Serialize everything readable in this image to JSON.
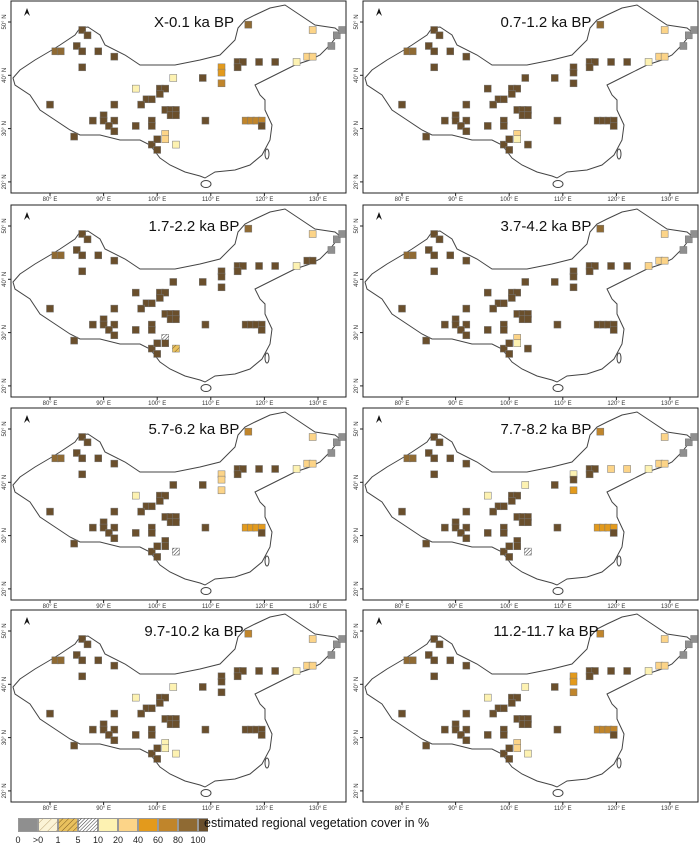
{
  "figure": {
    "north_arrow_icon": "north-arrow-icon",
    "x_ticks": [
      "80° E",
      "90° E",
      "100° E",
      "110° E",
      "120° E",
      "130° E"
    ],
    "y_ticks": [
      "50° N",
      "40° N",
      "30° N",
      "20° N"
    ],
    "x_tick_values": [
      80,
      90,
      100,
      110,
      120,
      130
    ],
    "y_tick_values": [
      50,
      40,
      30,
      20
    ]
  },
  "legend": {
    "title": "estimated regional vegetation cover in %",
    "tick_labels": [
      "0",
      ">0",
      "1",
      "5",
      "10",
      "20",
      "40",
      "60",
      "80",
      "100"
    ],
    "classes": [
      {
        "key": "0",
        "color": "#8f8f8f",
        "hatch": false
      },
      {
        "key": ">0",
        "color": "#fbf3d6",
        "hatch": "sparse"
      },
      {
        "key": "1",
        "color": "#e9c15e",
        "hatch": "medium"
      },
      {
        "key": "5",
        "color": "#ffffff",
        "hatch": "dense"
      },
      {
        "key": "10",
        "color": "#fdf2b2",
        "hatch": false
      },
      {
        "key": "20",
        "color": "#fcd488",
        "hatch": false
      },
      {
        "key": "40",
        "color": "#e39a1c",
        "hatch": false
      },
      {
        "key": "60",
        "color": "#c0852b",
        "hatch": false
      },
      {
        "key": "80",
        "color": "#8f6a33",
        "hatch": false
      },
      {
        "key": "100",
        "color": "#6a4f2c",
        "hatch": false
      }
    ]
  },
  "sites": [
    [
      86,
      48.5
    ],
    [
      87,
      47.5
    ],
    [
      117,
      49.5
    ],
    [
      85,
      45.5
    ],
    [
      86,
      44.5
    ],
    [
      81,
      44.5
    ],
    [
      82,
      44.5
    ],
    [
      89,
      44.5
    ],
    [
      92,
      43.5
    ],
    [
      86,
      41.5
    ],
    [
      108.5,
      39.5
    ],
    [
      103,
      39.5
    ],
    [
      96,
      37.5
    ],
    [
      100.5,
      37.5
    ],
    [
      101.5,
      37.5
    ],
    [
      100.5,
      36.5
    ],
    [
      98,
      35.5
    ],
    [
      99,
      35.5
    ],
    [
      97,
      34.5
    ],
    [
      80,
      34.5
    ],
    [
      92,
      34.5
    ],
    [
      101.5,
      33.5
    ],
    [
      102.5,
      33.5
    ],
    [
      103.5,
      33.5
    ],
    [
      102.5,
      32.5
    ],
    [
      103.5,
      32.5
    ],
    [
      90,
      32.5
    ],
    [
      88,
      31.5
    ],
    [
      90,
      31.5
    ],
    [
      92,
      31.5
    ],
    [
      91,
      30.5
    ],
    [
      92,
      29.5
    ],
    [
      96,
      30.5
    ],
    [
      99,
      31.5
    ],
    [
      99,
      30.5
    ],
    [
      109,
      31.5
    ],
    [
      84.5,
      28.5
    ],
    [
      99,
      27
    ],
    [
      100,
      28
    ],
    [
      100,
      26
    ],
    [
      101.5,
      29
    ],
    [
      101.5,
      28
    ],
    [
      103.5,
      27
    ],
    [
      116.5,
      31.5
    ],
    [
      117.5,
      31.5
    ],
    [
      118.5,
      31.5
    ],
    [
      119.5,
      31.5
    ],
    [
      119.5,
      30.5
    ],
    [
      115,
      42.5
    ],
    [
      116,
      42.5
    ],
    [
      115,
      41.5
    ],
    [
      119,
      42.5
    ],
    [
      122,
      42.5
    ],
    [
      112,
      41.5
    ],
    [
      112,
      40.5
    ],
    [
      112,
      38.5
    ],
    [
      126,
      42.5
    ],
    [
      128,
      43.5
    ],
    [
      129,
      43.5
    ],
    [
      129,
      48.5
    ],
    [
      133.5,
      47.5
    ],
    [
      134.5,
      48.5
    ],
    [
      132.5,
      45.5
    ]
  ],
  "panels": [
    {
      "title": "X-0.1 ka BP",
      "values": [
        "100",
        "100",
        "80",
        "100",
        "100",
        "80",
        "80",
        "100",
        "100",
        "100",
        "100",
        "10",
        "10",
        "100",
        "100",
        "100",
        "100",
        "100",
        "100",
        "100",
        "100",
        "100",
        "100",
        "100",
        "100",
        "100",
        "100",
        "100",
        "100",
        "100",
        "100",
        "100",
        "100",
        "100",
        "100",
        "100",
        "100",
        "100",
        "100",
        "100",
        "20",
        "20",
        "10",
        "60",
        "60",
        "60",
        "60",
        "100",
        "100",
        "100",
        "100",
        "100",
        "100",
        "40",
        "40",
        "60",
        "10",
        "20",
        "20",
        "20",
        "0",
        "0",
        "0"
      ]
    },
    {
      "title": "0.7-1.2 ka BP",
      "values": [
        "100",
        "100",
        "80",
        "100",
        "100",
        "80",
        "80",
        "100",
        "100",
        "100",
        "100",
        "100",
        "100",
        "100",
        "100",
        "100",
        "100",
        "100",
        "100",
        "100",
        "100",
        "100",
        "100",
        "100",
        "100",
        "100",
        "100",
        "100",
        "100",
        "100",
        "100",
        "100",
        "100",
        "100",
        "100",
        "100",
        "100",
        "100",
        "100",
        "100",
        "20",
        "10",
        "100",
        "100",
        "100",
        "100",
        "100",
        "100",
        "100",
        "100",
        "100",
        "100",
        "100",
        "100",
        "100",
        "100",
        "10",
        "20",
        "20",
        "20",
        "0",
        "0",
        "0"
      ]
    },
    {
      "title": "1.7-2.2 ka BP",
      "values": [
        "100",
        "100",
        "80",
        "100",
        "100",
        "80",
        "80",
        "100",
        "100",
        "100",
        "100",
        "100",
        "100",
        "100",
        "100",
        "100",
        "100",
        "100",
        "100",
        "100",
        "100",
        "100",
        "100",
        "100",
        "100",
        "100",
        "100",
        "100",
        "100",
        "100",
        "100",
        "100",
        "100",
        "100",
        "100",
        "100",
        "100",
        "100",
        "100",
        "100",
        "5",
        "100",
        "1",
        "100",
        "100",
        "100",
        "100",
        "100",
        "100",
        "100",
        "100",
        "100",
        "100",
        "100",
        "100",
        "100",
        "10",
        "100",
        "100",
        "20",
        "0",
        "0",
        "0"
      ]
    },
    {
      "title": "3.7-4.2 ka BP",
      "values": [
        "100",
        "100",
        "80",
        "100",
        "100",
        "80",
        "80",
        "100",
        "100",
        "100",
        "100",
        "100",
        "100",
        "100",
        "100",
        "100",
        "100",
        "100",
        "100",
        "100",
        "100",
        "100",
        "100",
        "100",
        "100",
        "100",
        "100",
        "100",
        "100",
        "100",
        "100",
        "100",
        "100",
        "100",
        "100",
        "100",
        "100",
        "100",
        "100",
        "100",
        "20",
        "10",
        "100",
        "100",
        "100",
        "100",
        "100",
        "100",
        "100",
        "100",
        "100",
        "100",
        "100",
        "100",
        "100",
        "100",
        "20",
        "20",
        "20",
        "20",
        "0",
        "0",
        "0"
      ]
    },
    {
      "title": "5.7-6.2 ka BP",
      "values": [
        "100",
        "100",
        "60",
        "100",
        "100",
        "80",
        "80",
        "100",
        "100",
        "100",
        "100",
        "100",
        "10",
        "100",
        "100",
        "100",
        "100",
        "100",
        "100",
        "100",
        "100",
        "100",
        "100",
        "100",
        "100",
        "100",
        "100",
        "100",
        "100",
        "100",
        "100",
        "100",
        "100",
        "100",
        "100",
        "100",
        "100",
        "100",
        "100",
        "100",
        "100",
        "100",
        "5",
        "40",
        "40",
        "40",
        "40",
        "100",
        "100",
        "100",
        "100",
        "100",
        "100",
        "20",
        "20",
        "20",
        "10",
        "20",
        "20",
        "20",
        "0",
        "0",
        "0"
      ]
    },
    {
      "title": "7.7-8.2 ka BP",
      "values": [
        "100",
        "100",
        "60",
        "100",
        "100",
        "80",
        "80",
        "100",
        "100",
        "100",
        "100",
        "10",
        "10",
        "100",
        "100",
        "100",
        "100",
        "100",
        "100",
        "100",
        "100",
        "100",
        "100",
        "100",
        "100",
        "100",
        "100",
        "100",
        "100",
        "100",
        "100",
        "100",
        "100",
        "100",
        "100",
        "100",
        "100",
        "100",
        "100",
        "100",
        "100",
        "100",
        "5",
        "40",
        "40",
        "40",
        "40",
        "100",
        "100",
        "100",
        "100",
        "20",
        "20",
        "10",
        "100",
        "40",
        "10",
        "20",
        "20",
        "20",
        "0",
        "0",
        "0"
      ]
    },
    {
      "title": "9.7-10.2 ka BP",
      "values": [
        "100",
        "100",
        "60",
        "100",
        "100",
        "80",
        "80",
        "100",
        "100",
        "100",
        "100",
        "10",
        "10",
        "100",
        "100",
        "100",
        "100",
        "100",
        "100",
        "100",
        "100",
        "100",
        "100",
        "100",
        "100",
        "100",
        "100",
        "100",
        "100",
        "100",
        "100",
        "100",
        "100",
        "100",
        "100",
        "100",
        "100",
        "100",
        "100",
        "100",
        "10",
        "10",
        "10",
        "100",
        "100",
        "100",
        "100",
        "100",
        "100",
        "100",
        "100",
        "100",
        "100",
        "100",
        "100",
        "100",
        "10",
        "20",
        "20",
        "20",
        "0",
        "0",
        "0"
      ]
    },
    {
      "title": "11.2-11.7 ka BP",
      "values": [
        "100",
        "100",
        "60",
        "100",
        "100",
        "80",
        "80",
        "100",
        "100",
        "100",
        "100",
        "10",
        "10",
        "100",
        "100",
        "100",
        "100",
        "100",
        "100",
        "100",
        "100",
        "100",
        "100",
        "100",
        "100",
        "100",
        "100",
        "100",
        "100",
        "100",
        "100",
        "100",
        "100",
        "100",
        "100",
        "100",
        "100",
        "100",
        "100",
        "100",
        "20",
        "20",
        "10",
        "60",
        "60",
        "60",
        "60",
        "100",
        "100",
        "100",
        "100",
        "100",
        "100",
        "40",
        "40",
        "60",
        "10",
        "20",
        "20",
        "20",
        "0",
        "0",
        "0"
      ]
    }
  ]
}
